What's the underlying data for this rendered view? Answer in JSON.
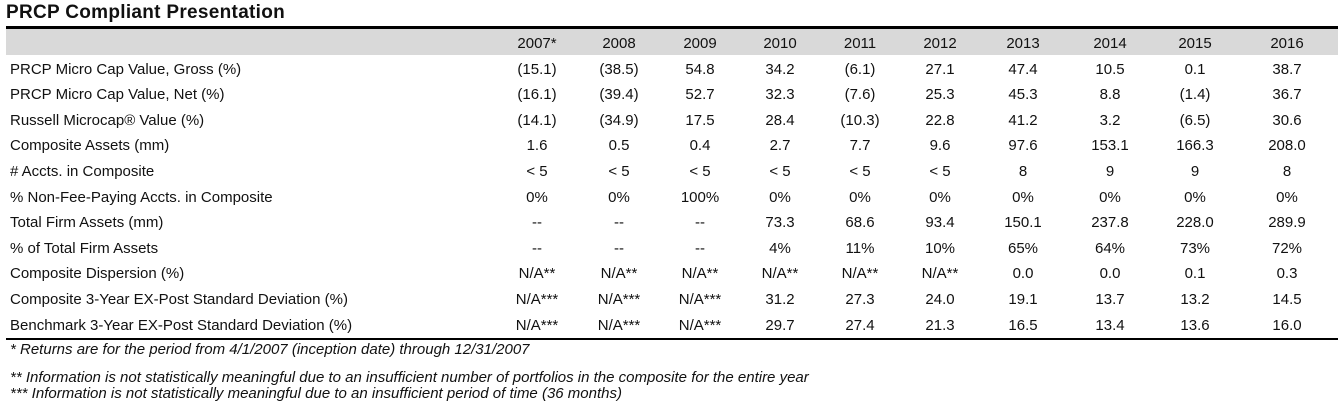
{
  "title": "PRCP Compliant Presentation",
  "columns": [
    "2007*",
    "2008",
    "2009",
    "2010",
    "2011",
    "2012",
    "2013",
    "2014",
    "2015",
    "2016"
  ],
  "rows": [
    {
      "label": "PRCP Micro Cap Value, Gross (%)",
      "values": [
        "(15.1)",
        "(38.5)",
        "54.8",
        "34.2",
        "(6.1)",
        "27.1",
        "47.4",
        "10.5",
        "0.1",
        "38.7"
      ]
    },
    {
      "label": "PRCP Micro Cap Value, Net (%)",
      "values": [
        "(16.1)",
        "(39.4)",
        "52.7",
        "32.3",
        "(7.6)",
        "25.3",
        "45.3",
        "8.8",
        "(1.4)",
        "36.7"
      ]
    },
    {
      "label": "Russell Microcap® Value (%)",
      "values": [
        "(14.1)",
        "(34.9)",
        "17.5",
        "28.4",
        "(10.3)",
        "22.8",
        "41.2",
        "3.2",
        "(6.5)",
        "30.6"
      ]
    },
    {
      "label": "Composite Assets (mm)",
      "values": [
        "1.6",
        "0.5",
        "0.4",
        "2.7",
        "7.7",
        "9.6",
        "97.6",
        "153.1",
        "166.3",
        "208.0"
      ]
    },
    {
      "label": "# Accts. in Composite",
      "values": [
        "< 5",
        "< 5",
        "< 5",
        "< 5",
        "< 5",
        "< 5",
        "8",
        "9",
        "9",
        "8"
      ]
    },
    {
      "label": "% Non-Fee-Paying Accts. in Composite",
      "values": [
        "0%",
        "0%",
        "100%",
        "0%",
        "0%",
        "0%",
        "0%",
        "0%",
        "0%",
        "0%"
      ]
    },
    {
      "label": "Total Firm Assets (mm)",
      "values": [
        "--",
        "--",
        "--",
        "73.3",
        "68.6",
        "93.4",
        "150.1",
        "237.8",
        "228.0",
        "289.9"
      ]
    },
    {
      "label": "% of Total Firm Assets",
      "values": [
        "--",
        "--",
        "--",
        "4%",
        "11%",
        "10%",
        "65%",
        "64%",
        "73%",
        "72%"
      ]
    },
    {
      "label": "Composite Dispersion (%)",
      "values": [
        "N/A**",
        "N/A**",
        "N/A**",
        "N/A**",
        "N/A**",
        "N/A**",
        "0.0",
        "0.0",
        "0.1",
        "0.3"
      ]
    },
    {
      "label": "Composite 3-Year EX-Post Standard Deviation (%)",
      "values": [
        "N/A***",
        "N/A***",
        "N/A***",
        "31.2",
        "27.3",
        "24.0",
        "19.1",
        "13.7",
        "13.2",
        "14.5"
      ]
    },
    {
      "label": "Benchmark 3-Year EX-Post Standard Deviation (%)",
      "values": [
        "N/A***",
        "N/A***",
        "N/A***",
        "29.7",
        "27.4",
        "21.3",
        "16.5",
        "13.4",
        "13.6",
        "16.0"
      ]
    }
  ],
  "notes": [
    "* Returns are for the period from 4/1/2007 (inception date) through 12/31/2007",
    "** Information is not statistically meaningful due to an insufficient number of portfolios in the composite for the entire year",
    "*** Information is not statistically meaningful due to an insufficient period of time (36 months)"
  ]
}
